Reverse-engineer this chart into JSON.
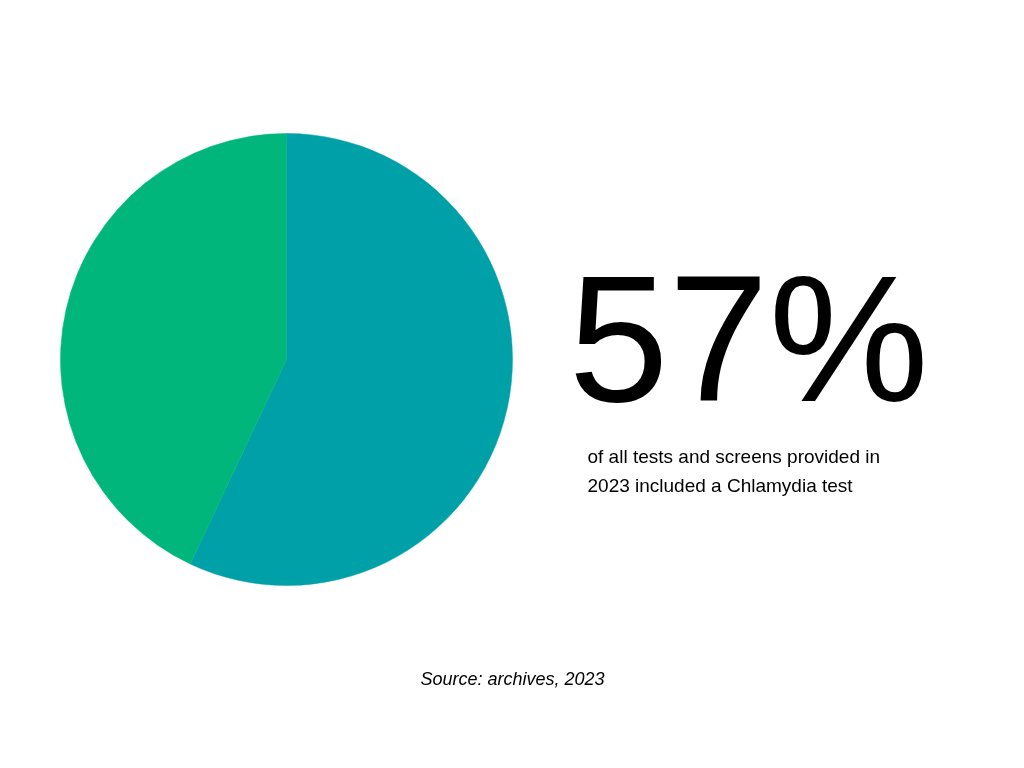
{
  "chart_data": {
    "type": "pie",
    "categories": [
      null,
      null
    ],
    "values": [
      57,
      43
    ],
    "colors": [
      "#00a0a8",
      "#00b67a"
    ],
    "annotations": [
      "57%",
      "of all tests and screens provided in 2023 included a Chlamydia test",
      "Source: archives, 2023"
    ]
  }
}
